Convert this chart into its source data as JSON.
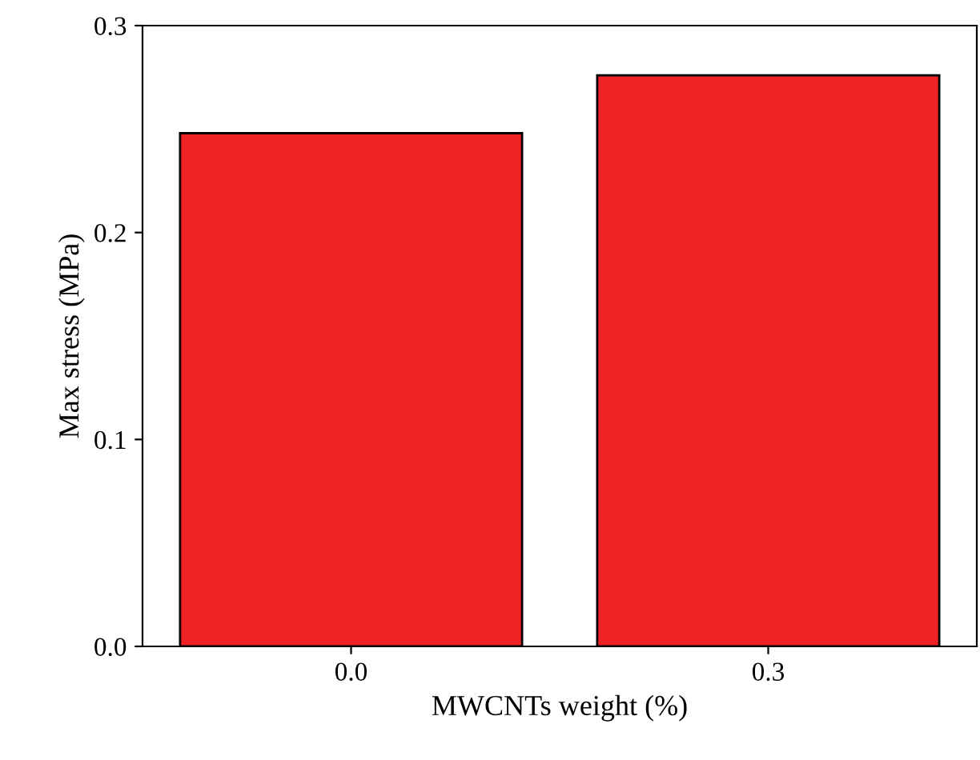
{
  "chart_data": {
    "type": "bar",
    "xlabel": "MWCNTs weight (%)",
    "ylabel": "Max stress (MPa)",
    "categories": [
      "0.0",
      "0.3"
    ],
    "series": [
      {
        "color": "#ee2224",
        "values": [
          0.248,
          0.276
        ]
      }
    ],
    "ylim": [
      0,
      0.3
    ],
    "yticks": [
      {
        "value": 0,
        "label": "0.0"
      },
      {
        "value": 0.1,
        "label": "0.1"
      },
      {
        "value": 0.2,
        "label": "0.2"
      },
      {
        "value": 0.3,
        "label": "0.3"
      }
    ],
    "grid": false,
    "legend": false
  }
}
